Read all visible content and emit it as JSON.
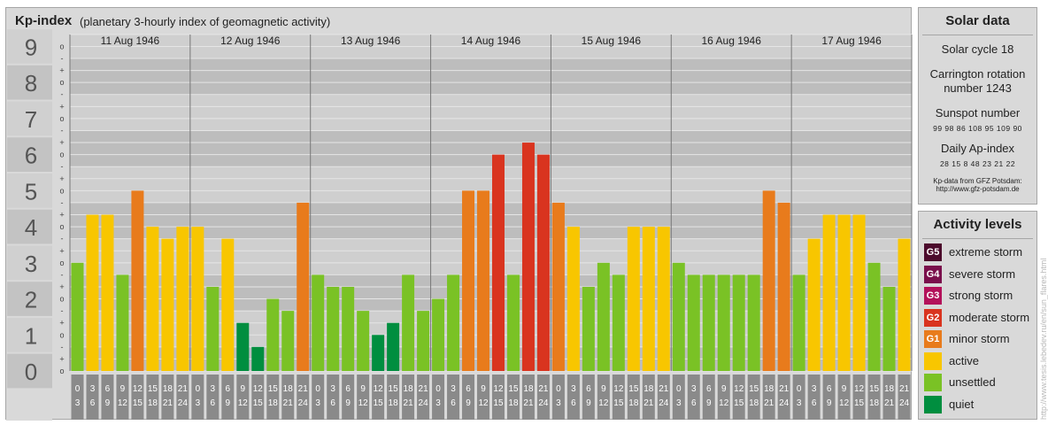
{
  "header": {
    "title": "Kp-index",
    "subtitle": "(planetary 3-hourly index of geomagnetic activity)"
  },
  "chart_data": {
    "type": "bar",
    "y_ticks": [
      "0",
      "1",
      "2",
      "3",
      "4",
      "5",
      "6",
      "7",
      "8",
      "9"
    ],
    "y_minor_labels": [
      "o",
      "+",
      "-"
    ],
    "ylim": [
      0,
      9.33
    ],
    "days": [
      "11 Aug 1946",
      "12 Aug 1946",
      "13 Aug 1946",
      "14 Aug 1946",
      "15 Aug 1946",
      "16 Aug 1946",
      "17 Aug 1946"
    ],
    "interval_start": [
      "0",
      "3",
      "6",
      "9",
      "12",
      "15",
      "18",
      "21"
    ],
    "interval_end": [
      "3",
      "6",
      "9",
      "12",
      "15",
      "18",
      "21",
      "24"
    ],
    "values": [
      3.0,
      4.333,
      4.333,
      2.667,
      5.0,
      4.0,
      3.667,
      4.0,
      4.0,
      2.333,
      3.667,
      1.333,
      0.667,
      2.0,
      1.667,
      4.667,
      2.667,
      2.333,
      2.333,
      1.667,
      1.0,
      1.333,
      2.667,
      1.667,
      2.0,
      2.667,
      5.0,
      5.0,
      6.0,
      2.667,
      6.333,
      6.0,
      4.667,
      4.0,
      2.333,
      3.0,
      2.667,
      4.0,
      4.0,
      4.0,
      3.0,
      2.667,
      2.667,
      2.667,
      2.667,
      2.667,
      5.0,
      4.667,
      2.667,
      3.667,
      4.333,
      4.333,
      4.333,
      3.0,
      2.333,
      3.667
    ],
    "level_colors": {
      "quiet": "#008e3f",
      "unsettled": "#7ac225",
      "active": "#f8c600",
      "G1": "#e87b1c",
      "G2": "#d9341f",
      "G3": "#b3115a",
      "G4": "#7a0f4c",
      "G5": "#4c0b2c"
    }
  },
  "solar": {
    "title": "Solar data",
    "cycle": "Solar cycle 18",
    "carrington_line1": "Carrington rotation",
    "carrington_line2": "number 1243",
    "sunspot_label": "Sunspot number",
    "sunspot_values": "99 98 86 108 95 109 90",
    "ap_label": "Daily Ap-index",
    "ap_values": "28 15 8 48 23 21 22",
    "source_line1": "Kp-data from GFZ Potsdam:",
    "source_line2": "http://www.gfz-potsdam.de"
  },
  "activity": {
    "title": "Activity levels",
    "items": [
      {
        "code": "G5",
        "label": "extreme storm",
        "color": "#4c0b2c"
      },
      {
        "code": "G4",
        "label": "severe storm",
        "color": "#7a0f4c"
      },
      {
        "code": "G3",
        "label": "strong storm",
        "color": "#b3115a"
      },
      {
        "code": "G2",
        "label": "moderate storm",
        "color": "#d9341f"
      },
      {
        "code": "G1",
        "label": "minor storm",
        "color": "#e87b1c"
      },
      {
        "code": "",
        "label": "active",
        "color": "#f8c600"
      },
      {
        "code": "",
        "label": "unsettled",
        "color": "#7ac225"
      },
      {
        "code": "",
        "label": "quiet",
        "color": "#008e3f"
      }
    ]
  },
  "footer": {
    "vertical_url": "http://www.tesis.lebedev.ru/en/sun_flares.html"
  }
}
